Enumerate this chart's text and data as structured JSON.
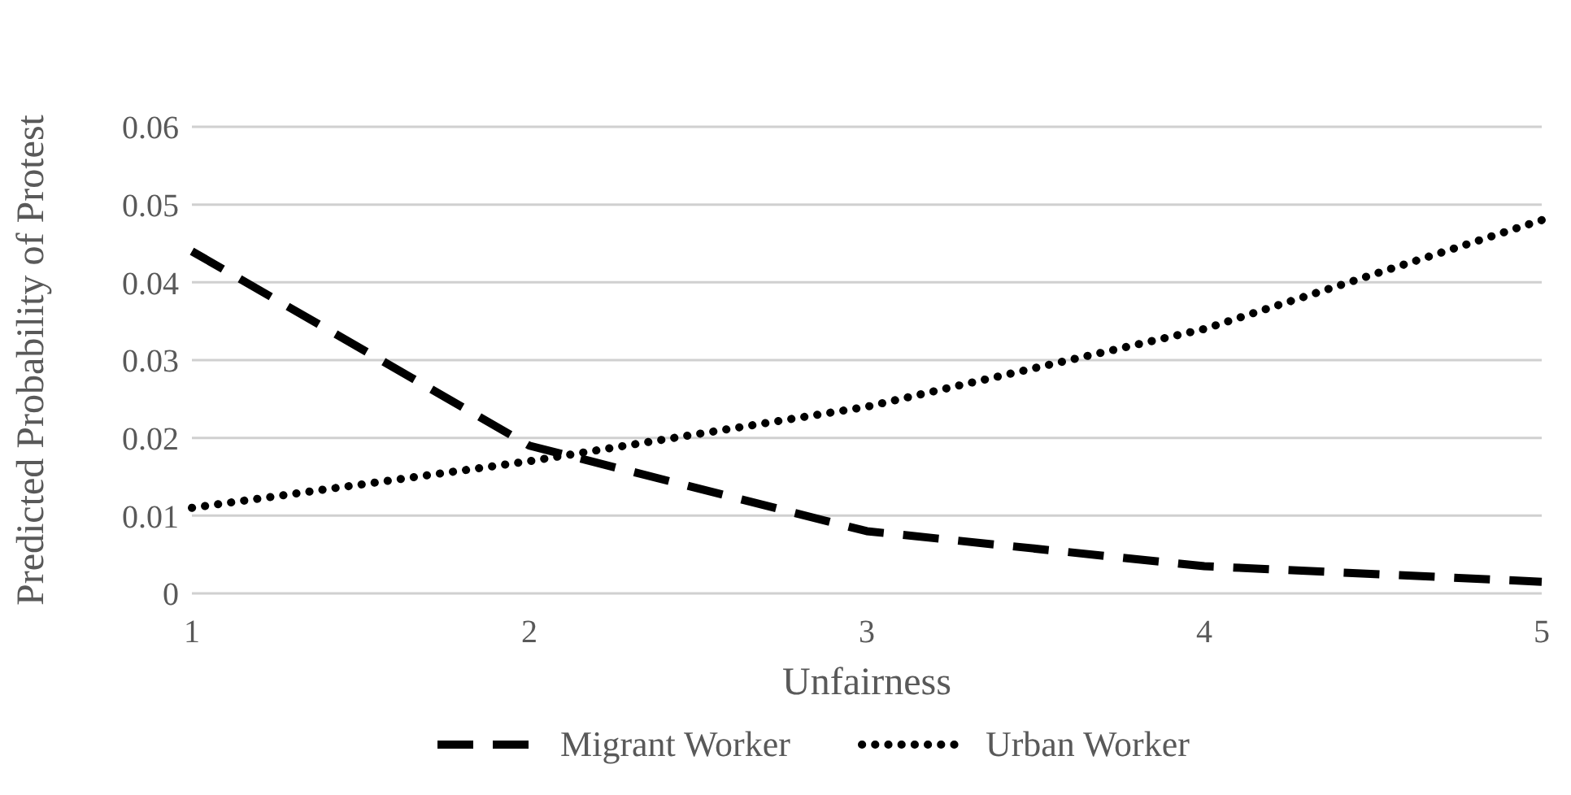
{
  "chart_data": {
    "type": "line",
    "xlabel": "Unfairness",
    "ylabel": "Predicted Probability of Protest",
    "categories": [
      "1",
      "2",
      "3",
      "4",
      "5"
    ],
    "ylim": [
      0,
      0.06
    ],
    "yticks": [
      {
        "value": 0,
        "label": "0"
      },
      0.01,
      0.02,
      0.03,
      0.04,
      0.05,
      0.06
    ],
    "grid": "y",
    "legend": "bottom",
    "marker": "none",
    "series": [
      {
        "name": "Migrant Worker",
        "color": "#000000",
        "line_style": "dashed",
        "values": [
          0.044,
          0.019,
          0.008,
          0.0035,
          0.0015
        ]
      },
      {
        "name": "Urban Worker",
        "color": "#000000",
        "line_style": "dotted",
        "values": [
          0.011,
          0.017,
          0.024,
          0.034,
          0.048
        ]
      }
    ]
  }
}
